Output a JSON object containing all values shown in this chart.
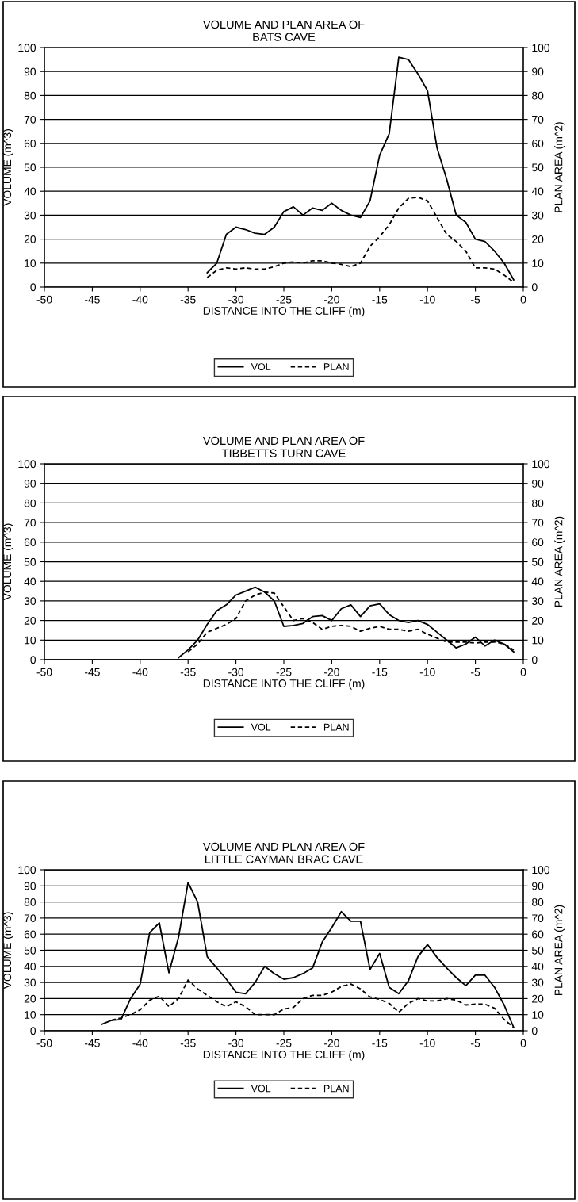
{
  "chart_data": [
    {
      "type": "line",
      "title": "VOLUME AND PLAN AREA OF\nBATS CAVE",
      "xlabel": "DISTANCE INTO THE CLIFF (m)",
      "ylabel": "VOLUME (m^3)",
      "y2label": "PLAN AREA (m^2)",
      "xlim": [
        -50,
        0
      ],
      "xticks": [
        -50,
        -45,
        -40,
        -35,
        -30,
        -25,
        -20,
        -15,
        -10,
        -5,
        0
      ],
      "ylim": [
        0,
        100
      ],
      "yticks": [
        0,
        10,
        20,
        30,
        40,
        50,
        60,
        70,
        80,
        90,
        100
      ],
      "y2lim": [
        0,
        100
      ],
      "y2ticks": [
        0,
        10,
        20,
        30,
        40,
        50,
        60,
        70,
        80,
        90,
        100
      ],
      "grid": "y",
      "legend": "bottom",
      "x": [
        -33,
        -32,
        -31,
        -30,
        -29,
        -28,
        -27,
        -26,
        -25,
        -24,
        -23,
        -22,
        -21,
        -20,
        -19,
        -18,
        -17,
        -16,
        -15,
        -14,
        -13,
        -12,
        -11,
        -10,
        -9,
        -8,
        -7,
        -6,
        -5,
        -4,
        -3,
        -2,
        -1
      ],
      "series": [
        {
          "name": "VOL",
          "color": "#000000",
          "line_style": "solid",
          "values": [
            6,
            10,
            22,
            25,
            24,
            22.5,
            22,
            25,
            31.5,
            33.5,
            30,
            33,
            32,
            35,
            32,
            30,
            29,
            36,
            55,
            64,
            96,
            95,
            89,
            82,
            58,
            45,
            30,
            27,
            20,
            19,
            15,
            10,
            3
          ]
        },
        {
          "name": "PLAN",
          "color": "#000000",
          "line_style": "dashed",
          "values": [
            4,
            7,
            8,
            7.5,
            8,
            7.5,
            7.5,
            8.5,
            10,
            10.5,
            10,
            11,
            11,
            10,
            9.5,
            8.5,
            10,
            17,
            21,
            26,
            33,
            37,
            37.5,
            36,
            29,
            22,
            19,
            15,
            8,
            8,
            7.5,
            5,
            2
          ]
        }
      ]
    },
    {
      "type": "line",
      "title": "VOLUME AND PLAN AREA OF\nTIBBETTS TURN CAVE",
      "xlabel": "DISTANCE INTO THE CLIFF (m)",
      "ylabel": "VOLUME (m^3)",
      "y2label": "PLAN AREA (m^2)",
      "xlim": [
        -50,
        0
      ],
      "xticks": [
        -50,
        -45,
        -40,
        -35,
        -30,
        -25,
        -20,
        -15,
        -10,
        -5,
        0
      ],
      "ylim": [
        0,
        100
      ],
      "yticks": [
        0,
        10,
        20,
        30,
        40,
        50,
        60,
        70,
        80,
        90,
        100
      ],
      "y2lim": [
        0,
        100
      ],
      "y2ticks": [
        0,
        10,
        20,
        30,
        40,
        50,
        60,
        70,
        80,
        90,
        100
      ],
      "grid": "y",
      "legend": "bottom",
      "series": [
        {
          "name": "VOL",
          "color": "#000000",
          "line_style": "solid",
          "x": [
            -36,
            -35,
            -34,
            -33,
            -32,
            -31,
            -30,
            -29,
            -28,
            -27,
            -26,
            -25,
            -24,
            -23,
            -22,
            -21,
            -20,
            -19,
            -18,
            -17,
            -16,
            -15,
            -14,
            -13,
            -12,
            -11,
            -10,
            -9,
            -8,
            -7,
            -6,
            -5,
            -4,
            -3,
            -2,
            -1
          ],
          "values": [
            1,
            5,
            10,
            18,
            25,
            28,
            33,
            35,
            37,
            34.5,
            30,
            17,
            17.5,
            18.5,
            22,
            22.5,
            20,
            26,
            28,
            22,
            27.5,
            28.5,
            23,
            20,
            19,
            20,
            18,
            14,
            10,
            6,
            8,
            11.5,
            7,
            10,
            8,
            4
          ]
        },
        {
          "name": "PLAN",
          "color": "#000000",
          "line_style": "dashed",
          "x": [
            -35,
            -34,
            -33,
            -32,
            -31,
            -30,
            -29,
            -28,
            -27,
            -26,
            -25,
            -24,
            -23,
            -22,
            -21,
            -20,
            -19,
            -18,
            -17,
            -16,
            -15,
            -14,
            -13,
            -12,
            -11,
            -10,
            -9,
            -8,
            -7,
            -6,
            -5,
            -4,
            -3,
            -2,
            -1
          ],
          "values": [
            4,
            8,
            14,
            16,
            18,
            21,
            30,
            33,
            34.5,
            34,
            27,
            20,
            21,
            19,
            15.5,
            17,
            17.5,
            17,
            14.5,
            16,
            17,
            15.5,
            15.5,
            14.5,
            15.5,
            13,
            11,
            9,
            9,
            9,
            8.5,
            9,
            9,
            8,
            5
          ]
        }
      ]
    },
    {
      "type": "line",
      "title": "VOLUME AND PLAN AREA OF\nLITTLE CAYMAN BRAC CAVE",
      "xlabel": "DISTANCE INTO THE CLIFF (m)",
      "ylabel": "VOLUME (m^3)",
      "y2label": "PLAN AREA (m^2)",
      "xlim": [
        -50,
        0
      ],
      "xticks": [
        -50,
        -45,
        -40,
        -35,
        -30,
        -25,
        -20,
        -15,
        -10,
        -5,
        0
      ],
      "ylim": [
        0,
        100
      ],
      "yticks": [
        0,
        10,
        20,
        30,
        40,
        50,
        60,
        70,
        80,
        90,
        100
      ],
      "y2lim": [
        0,
        100
      ],
      "y2ticks": [
        0,
        10,
        20,
        30,
        40,
        50,
        60,
        70,
        80,
        90,
        100
      ],
      "grid": "y",
      "legend": "bottom",
      "series": [
        {
          "name": "VOL",
          "color": "#000000",
          "line_style": "solid",
          "x": [
            -44,
            -43,
            -42,
            -41,
            -40,
            -39,
            -38,
            -37,
            -36,
            -35,
            -34,
            -33,
            -32,
            -31,
            -30,
            -29,
            -28,
            -27,
            -26,
            -25,
            -24,
            -23,
            -22,
            -21,
            -20,
            -19,
            -18,
            -17,
            -16,
            -15,
            -14,
            -13,
            -12,
            -11,
            -10,
            -9,
            -8,
            -7,
            -6,
            -5,
            -4,
            -3,
            -2,
            -1
          ],
          "values": [
            4,
            6.5,
            7,
            20,
            29,
            61,
            67,
            36,
            58,
            92,
            80,
            46,
            39,
            32,
            24,
            23,
            30,
            40,
            35.5,
            32,
            33,
            35.5,
            39,
            55,
            64,
            74,
            68,
            68,
            38,
            48,
            27,
            23,
            31,
            46,
            53.5,
            45.5,
            39,
            33,
            28,
            34.5,
            34.5,
            27,
            16,
            2
          ]
        },
        {
          "name": "PLAN",
          "color": "#000000",
          "line_style": "dashed",
          "x": [
            -43,
            -42,
            -41,
            -40,
            -39,
            -38,
            -37,
            -36,
            -35,
            -34,
            -33,
            -32,
            -31,
            -30,
            -29,
            -28,
            -27,
            -26,
            -25,
            -24,
            -23,
            -22,
            -21,
            -20,
            -19,
            -18,
            -17,
            -16,
            -15,
            -14,
            -13,
            -12,
            -11,
            -10,
            -9,
            -8,
            -7,
            -6,
            -5,
            -4,
            -3,
            -2,
            -1
          ],
          "values": [
            6.5,
            8,
            10,
            13,
            19,
            21.5,
            15,
            20,
            31.5,
            26,
            22,
            18,
            15,
            18,
            15,
            10,
            10,
            10,
            13.5,
            14.5,
            20,
            22,
            22,
            24,
            27.5,
            29,
            26,
            21,
            19.5,
            17,
            11.5,
            17,
            20,
            18.5,
            18.5,
            20,
            19,
            16,
            16.5,
            16.5,
            14,
            7,
            2
          ]
        }
      ]
    }
  ]
}
